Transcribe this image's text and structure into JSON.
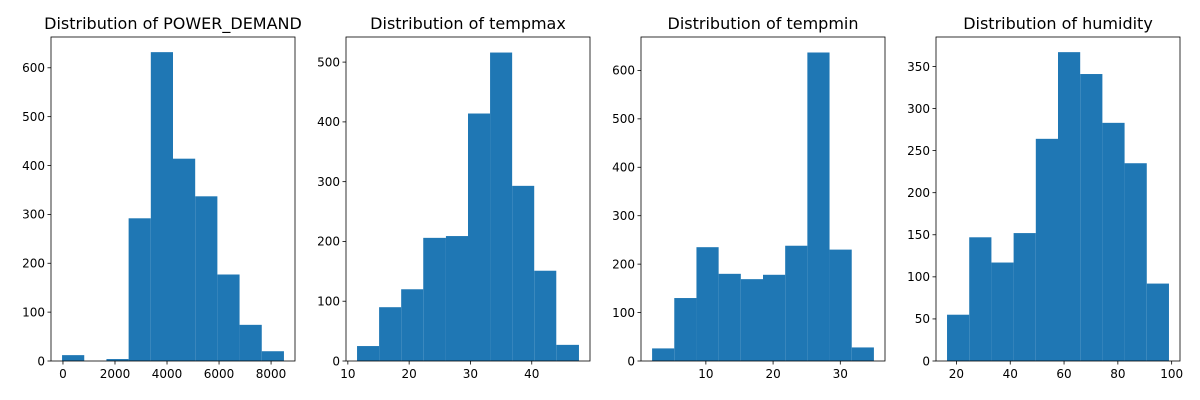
{
  "chart_data": [
    {
      "type": "bar",
      "title": "Distribution of POWER_DEMAND",
      "xlabel": "",
      "ylabel": "",
      "bins": [
        [
          -35,
          818
        ],
        [
          818,
          1671
        ],
        [
          1671,
          2524
        ],
        [
          2524,
          3377
        ],
        [
          3377,
          4230
        ],
        [
          4230,
          5083
        ],
        [
          5083,
          5936
        ],
        [
          5936,
          6789
        ],
        [
          6789,
          7642
        ],
        [
          7642,
          8495
        ]
      ],
      "values": [
        12,
        0,
        4,
        292,
        632,
        414,
        337,
        177,
        74,
        20
      ],
      "xlim": [
        -460,
        8920
      ],
      "ylim": [
        0,
        663
      ],
      "xticks": [
        0,
        2000,
        4000,
        6000,
        8000
      ],
      "xtick_labels": [
        "0",
        "2000",
        "4000",
        "6000",
        "8000"
      ],
      "yticks": [
        0,
        100,
        200,
        300,
        400,
        500,
        600
      ],
      "ytick_labels": [
        "0",
        "100",
        "200",
        "300",
        "400",
        "500",
        "600"
      ]
    },
    {
      "type": "bar",
      "title": "Distribution of tempmax",
      "xlabel": "",
      "ylabel": "",
      "bins": [
        [
          11.5,
          15.1
        ],
        [
          15.1,
          18.7
        ],
        [
          18.7,
          22.3
        ],
        [
          22.3,
          26.0
        ],
        [
          26.0,
          29.6
        ],
        [
          29.6,
          33.2
        ],
        [
          33.2,
          36.8
        ],
        [
          36.8,
          40.4
        ],
        [
          40.4,
          44.0
        ],
        [
          44.0,
          47.7
        ]
      ],
      "values": [
        25,
        90,
        120,
        206,
        209,
        414,
        516,
        293,
        151,
        27
      ],
      "xlim": [
        9.7,
        49.5
      ],
      "ylim": [
        0,
        542
      ],
      "xticks": [
        10,
        20,
        30,
        40
      ],
      "xtick_labels": [
        "10",
        "20",
        "30",
        "40"
      ],
      "yticks": [
        0,
        100,
        200,
        300,
        400,
        500
      ],
      "ytick_labels": [
        "0",
        "100",
        "200",
        "300",
        "400",
        "500"
      ]
    },
    {
      "type": "bar",
      "title": "Distribution of tempmin",
      "xlabel": "",
      "ylabel": "",
      "bins": [
        [
          2.0,
          5.3
        ],
        [
          5.3,
          8.6
        ],
        [
          8.6,
          11.9
        ],
        [
          11.9,
          15.2
        ],
        [
          15.2,
          18.5
        ],
        [
          18.5,
          21.8
        ],
        [
          21.8,
          25.1
        ],
        [
          25.1,
          28.4
        ],
        [
          28.4,
          31.7
        ],
        [
          31.7,
          35.0
        ]
      ],
      "values": [
        26,
        130,
        235,
        180,
        169,
        178,
        238,
        637,
        230,
        28
      ],
      "xlim": [
        0.35,
        36.65
      ],
      "ylim": [
        0,
        669
      ],
      "xticks": [
        10,
        20,
        30
      ],
      "xtick_labels": [
        "10",
        "20",
        "30"
      ],
      "yticks": [
        0,
        100,
        200,
        300,
        400,
        500,
        600
      ],
      "ytick_labels": [
        "0",
        "100",
        "200",
        "300",
        "400",
        "500",
        "600"
      ]
    },
    {
      "type": "bar",
      "title": "Distribution of humidity",
      "xlabel": "",
      "ylabel": "",
      "bins": [
        [
          16.5,
          24.75
        ],
        [
          24.75,
          33.0
        ],
        [
          33.0,
          41.25
        ],
        [
          41.25,
          49.5
        ],
        [
          49.5,
          57.75
        ],
        [
          57.75,
          66.0
        ],
        [
          66.0,
          74.25
        ],
        [
          74.25,
          82.5
        ],
        [
          82.5,
          90.75
        ],
        [
          90.75,
          99.0
        ]
      ],
      "values": [
        55,
        147,
        117,
        152,
        264,
        367,
        341,
        283,
        235,
        92
      ],
      "xlim": [
        12.4,
        103.1
      ],
      "ylim": [
        0,
        385
      ],
      "xticks": [
        20,
        40,
        60,
        80,
        100
      ],
      "xtick_labels": [
        "20",
        "40",
        "60",
        "80",
        "100"
      ],
      "yticks": [
        0,
        50,
        100,
        150,
        200,
        250,
        300,
        350
      ],
      "ytick_labels": [
        "0",
        "50",
        "100",
        "150",
        "200",
        "250",
        "300",
        "350"
      ]
    }
  ],
  "colors": {
    "bar": "#1f77b4",
    "axis": "#000000",
    "background": "#ffffff"
  }
}
